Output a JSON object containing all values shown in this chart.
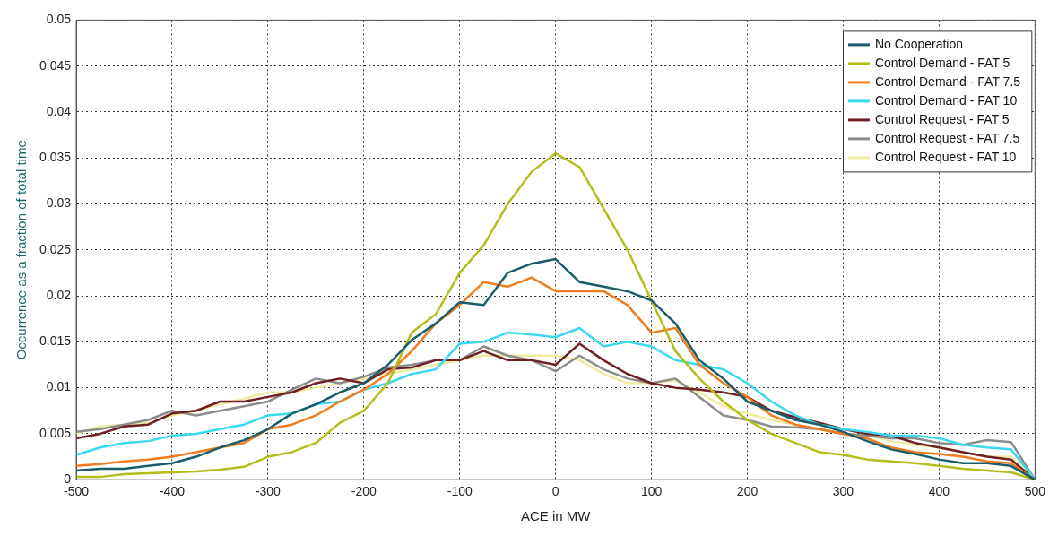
{
  "chart_data": {
    "type": "line",
    "xlabel": "ACE in MW",
    "ylabel": "Occurrence as a fraction of total time",
    "x": [
      -500,
      -475,
      -450,
      -425,
      -400,
      -375,
      -350,
      -325,
      -300,
      -275,
      -250,
      -225,
      -200,
      -175,
      -150,
      -125,
      -100,
      -75,
      -50,
      -25,
      0,
      25,
      50,
      75,
      100,
      125,
      150,
      175,
      200,
      225,
      250,
      275,
      300,
      325,
      350,
      375,
      400,
      425,
      450,
      475,
      500
    ],
    "xlim": [
      -500,
      500
    ],
    "xticks": [
      -500,
      -400,
      -300,
      -200,
      -100,
      0,
      100,
      200,
      300,
      400,
      500
    ],
    "ylim": [
      0,
      0.05
    ],
    "yticks": [
      0,
      0.005,
      0.01,
      0.015,
      0.02,
      0.025,
      0.03,
      0.035,
      0.04,
      0.045,
      0.05
    ],
    "grid": true,
    "legend": "top right",
    "marker": "none",
    "line_style": "solid",
    "series": [
      {
        "name": "No Cooperation",
        "color": "#1a5c6a",
        "values": [
          0.001,
          0.0012,
          0.0012,
          0.0015,
          0.0018,
          0.0025,
          0.0035,
          0.0043,
          0.0055,
          0.0072,
          0.0082,
          0.0095,
          0.0105,
          0.0125,
          0.0152,
          0.017,
          0.0193,
          0.019,
          0.0225,
          0.0235,
          0.024,
          0.0215,
          0.021,
          0.0205,
          0.0195,
          0.017,
          0.013,
          0.011,
          0.0085,
          0.0075,
          0.0065,
          0.006,
          0.0052,
          0.0042,
          0.0033,
          0.0028,
          0.0022,
          0.0018,
          0.0018,
          0.0015,
          0
        ]
      },
      {
        "name": "Control Demand - FAT 5",
        "color": "#b5bd1a",
        "values": [
          0.0003,
          0.0003,
          0.0006,
          0.0007,
          0.0008,
          0.0009,
          0.0011,
          0.0014,
          0.0025,
          0.003,
          0.004,
          0.0062,
          0.0075,
          0.0105,
          0.016,
          0.018,
          0.0225,
          0.0255,
          0.03,
          0.0335,
          0.0355,
          0.034,
          0.0295,
          0.025,
          0.0195,
          0.014,
          0.011,
          0.0085,
          0.0065,
          0.005,
          0.004,
          0.003,
          0.0027,
          0.0022,
          0.002,
          0.0018,
          0.0015,
          0.0012,
          0.001,
          0.0008,
          0
        ]
      },
      {
        "name": "Control Demand - FAT 7.5",
        "color": "#f07c1e",
        "values": [
          0.0015,
          0.0017,
          0.002,
          0.0022,
          0.0025,
          0.003,
          0.0035,
          0.004,
          0.0055,
          0.006,
          0.007,
          0.0085,
          0.0098,
          0.0115,
          0.014,
          0.017,
          0.019,
          0.0215,
          0.021,
          0.022,
          0.0205,
          0.0205,
          0.0205,
          0.019,
          0.016,
          0.0165,
          0.0125,
          0.0105,
          0.009,
          0.007,
          0.006,
          0.0055,
          0.005,
          0.0045,
          0.0035,
          0.003,
          0.0028,
          0.0025,
          0.002,
          0.0018,
          0
        ]
      },
      {
        "name": "Control Demand - FAT 10",
        "color": "#3ad9f0",
        "values": [
          0.0027,
          0.0035,
          0.004,
          0.0042,
          0.0048,
          0.005,
          0.0055,
          0.006,
          0.007,
          0.0072,
          0.0082,
          0.0085,
          0.0098,
          0.0105,
          0.0115,
          0.012,
          0.0148,
          0.015,
          0.016,
          0.0158,
          0.0155,
          0.0165,
          0.0145,
          0.015,
          0.0145,
          0.013,
          0.0125,
          0.012,
          0.0105,
          0.0085,
          0.007,
          0.006,
          0.0055,
          0.0052,
          0.0048,
          0.0048,
          0.0045,
          0.0038,
          0.0035,
          0.0033,
          0
        ]
      },
      {
        "name": "Control Request - FAT 5",
        "color": "#6e1f24",
        "values": [
          0.0045,
          0.005,
          0.0058,
          0.006,
          0.0072,
          0.0075,
          0.0085,
          0.0085,
          0.009,
          0.0095,
          0.0105,
          0.011,
          0.0105,
          0.012,
          0.0122,
          0.013,
          0.013,
          0.014,
          0.013,
          0.013,
          0.0125,
          0.0148,
          0.013,
          0.0115,
          0.0105,
          0.01,
          0.0098,
          0.0095,
          0.009,
          0.0075,
          0.0068,
          0.0062,
          0.0055,
          0.005,
          0.0048,
          0.004,
          0.0035,
          0.003,
          0.0025,
          0.0022,
          0
        ]
      },
      {
        "name": "Control Request - FAT 7.5",
        "color": "#8c8c8c",
        "values": [
          0.0052,
          0.0055,
          0.006,
          0.0065,
          0.0075,
          0.007,
          0.0075,
          0.008,
          0.0085,
          0.0098,
          0.011,
          0.0105,
          0.0112,
          0.0122,
          0.0125,
          0.013,
          0.013,
          0.0145,
          0.0135,
          0.013,
          0.0118,
          0.0135,
          0.012,
          0.011,
          0.0105,
          0.011,
          0.009,
          0.007,
          0.0065,
          0.0058,
          0.0057,
          0.0055,
          0.005,
          0.0048,
          0.0045,
          0.0045,
          0.004,
          0.0038,
          0.0043,
          0.0041,
          0
        ]
      },
      {
        "name": "Control Request - FAT 10",
        "color": "#f0eba0",
        "values": [
          0.005,
          0.0058,
          0.006,
          0.0062,
          0.007,
          0.0075,
          0.0082,
          0.0088,
          0.0095,
          0.0095,
          0.01,
          0.0105,
          0.011,
          0.0115,
          0.012,
          0.0125,
          0.013,
          0.0135,
          0.0135,
          0.0135,
          0.0135,
          0.013,
          0.0115,
          0.0105,
          0.0105,
          0.0108,
          0.0095,
          0.008,
          0.0072,
          0.0065,
          0.006,
          0.0055,
          0.005,
          0.0048,
          0.0042,
          0.0038,
          0.0035,
          0.003,
          0.0025,
          0.0025,
          0
        ]
      }
    ]
  }
}
